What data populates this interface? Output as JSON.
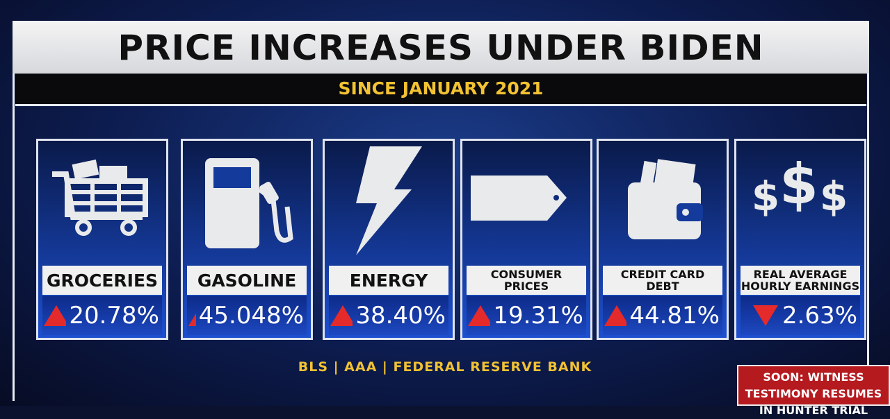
{
  "header": {
    "title": "PRICE INCREASES UNDER BIDEN",
    "subtitle": "SINCE JANUARY 2021"
  },
  "cards": [
    {
      "label": "GROCERIES",
      "value": "20.78%",
      "direction": "up"
    },
    {
      "label": "GASOLINE",
      "value": "45.048%",
      "direction": "up"
    },
    {
      "label": "ENERGY",
      "value": "38.40%",
      "direction": "up"
    },
    {
      "label": "CONSUMER PRICES",
      "value": "19.31%",
      "direction": "up"
    },
    {
      "label": "CREDIT CARD DEBT",
      "value": "44.81%",
      "direction": "up"
    },
    {
      "label": "REAL AVERAGE HOURLY EARNINGS",
      "value": "2.63%",
      "direction": "down"
    }
  ],
  "source": "BLS | AAA | FEDERAL RESERVE BANK",
  "ticker": "SOON: WITNESS TESTIMONY RESUMES IN HUNTER TRIAL"
}
